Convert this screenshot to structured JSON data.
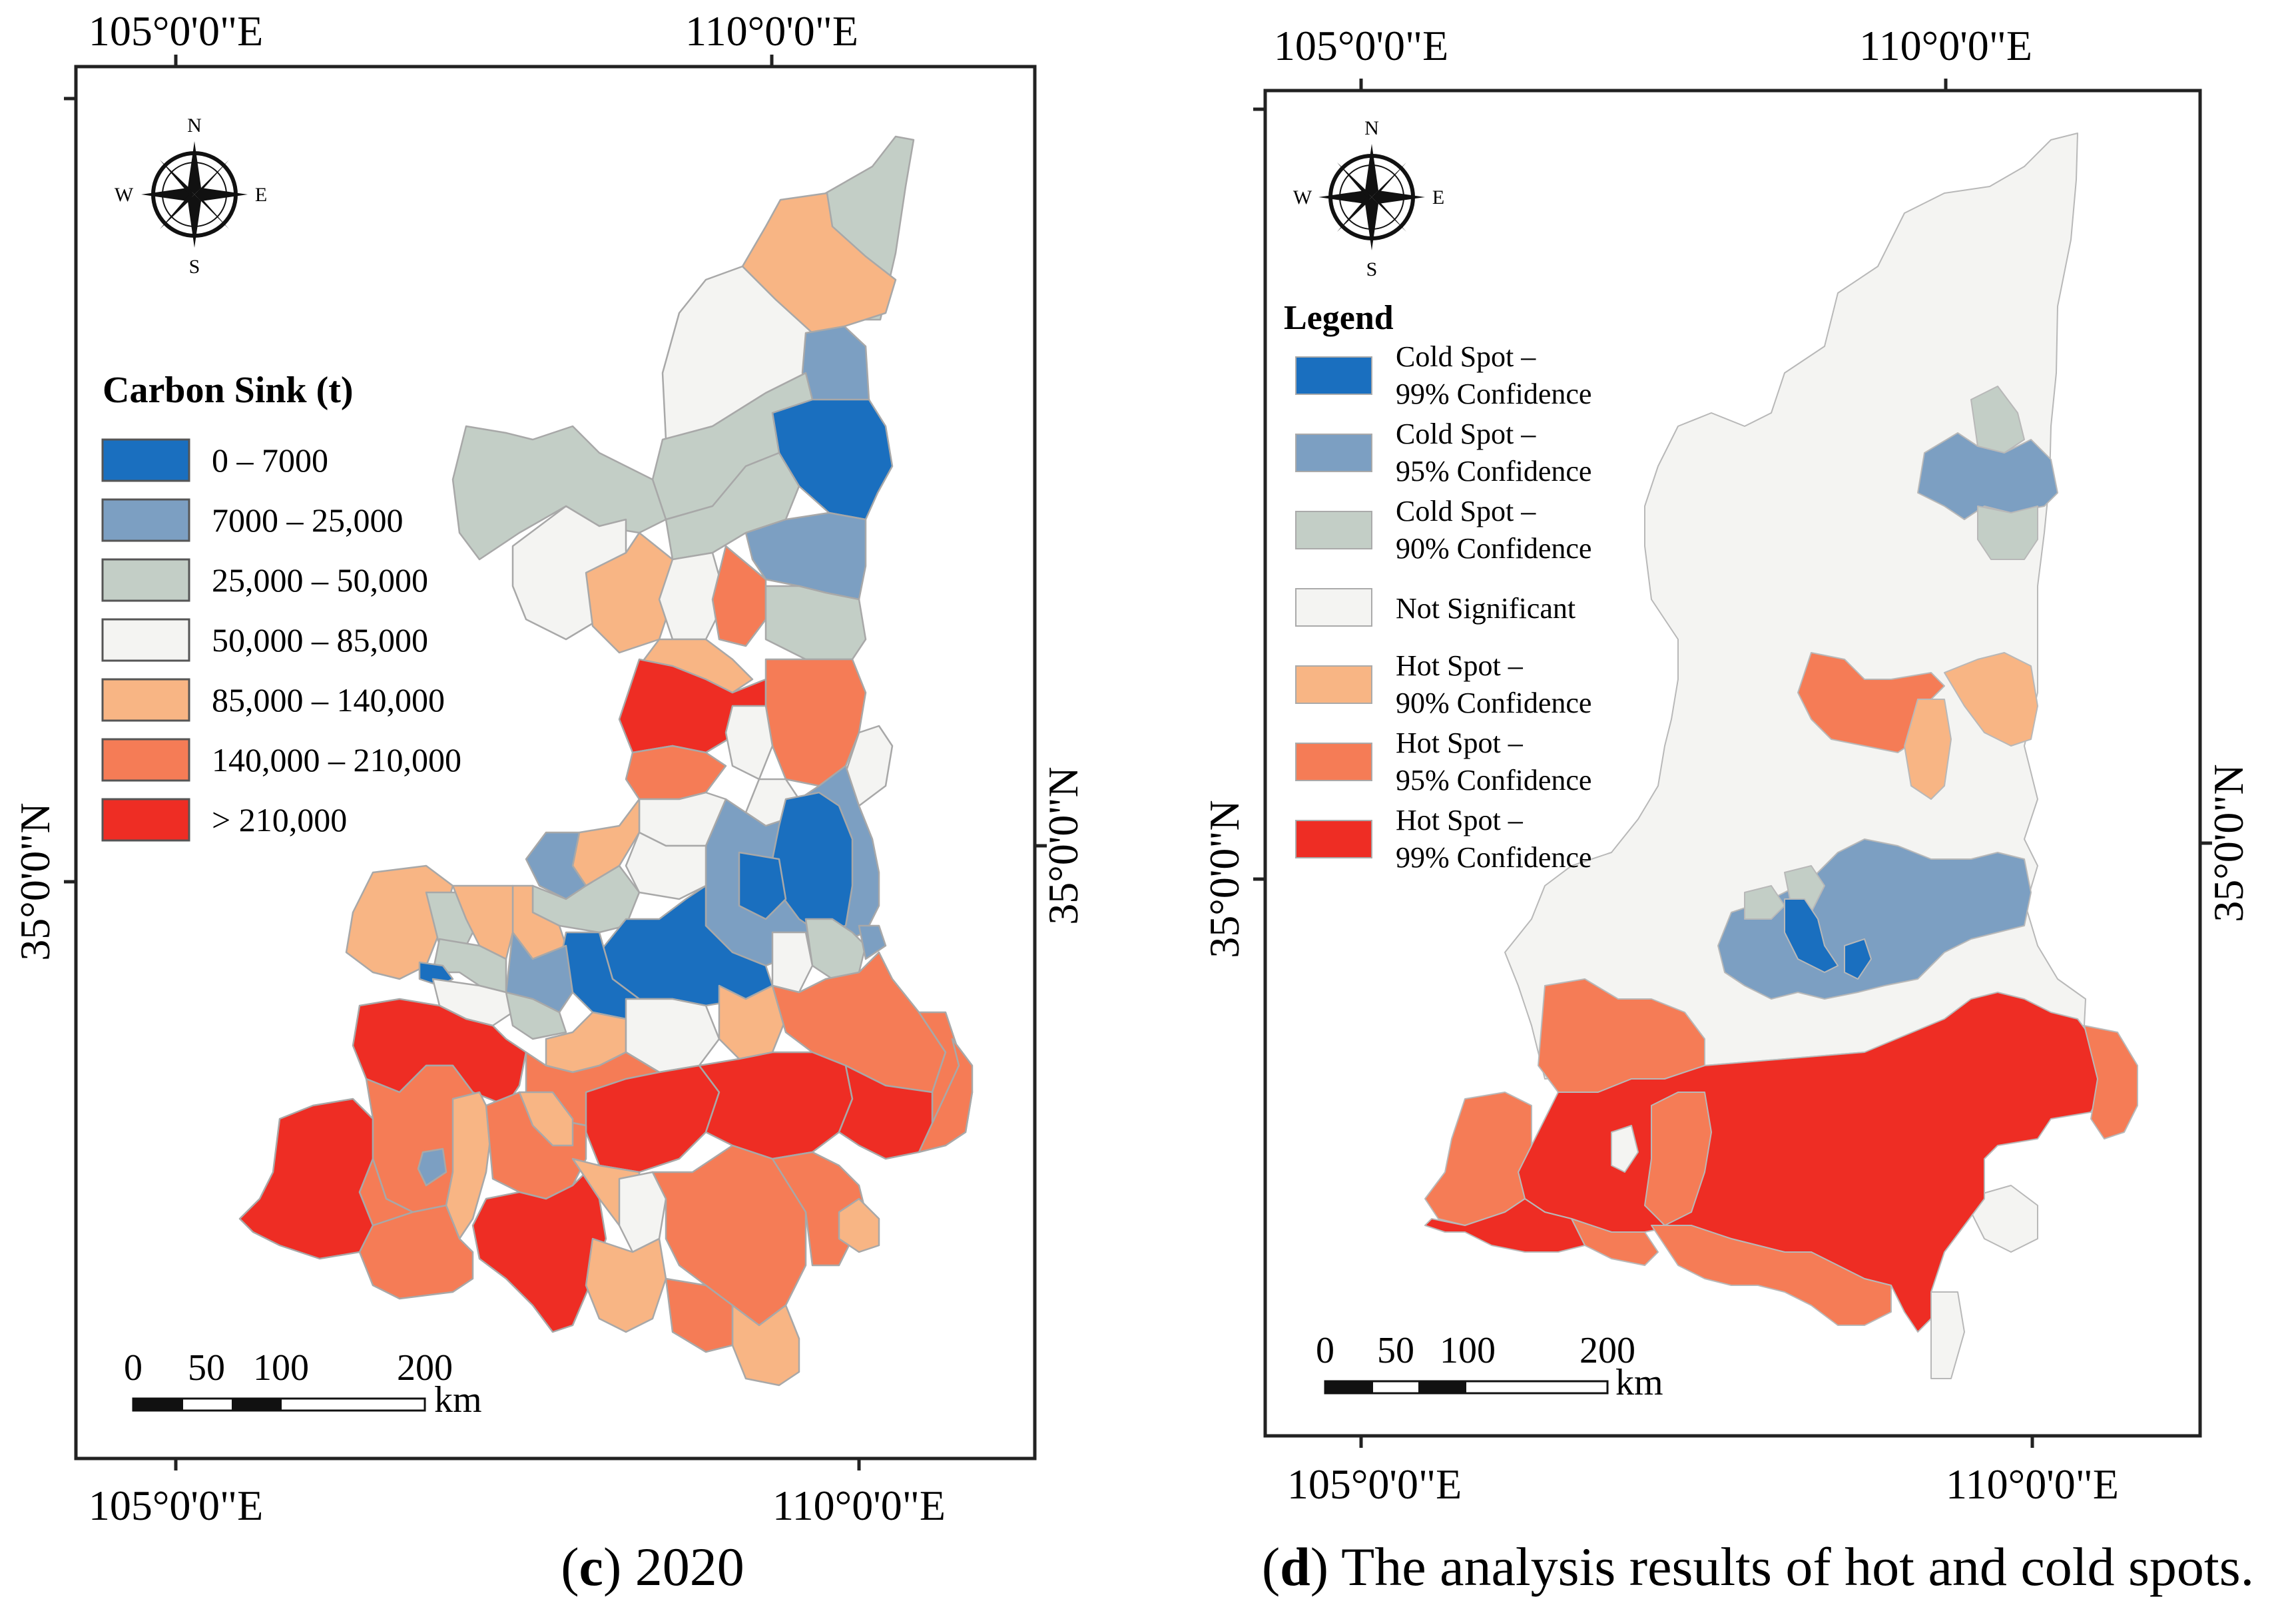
{
  "colors": {
    "cold99": "#1a6fbf",
    "cold95": "#7c9fc2",
    "cold90": "#c3cec6",
    "notsig": "#f4f4f2",
    "hot90": "#f8b584",
    "hot95": "#f57c56",
    "hot99": "#ee2d24",
    "border": "#a8a8a8",
    "frame": "#222222"
  },
  "icons": {
    "compass": "compass-rose-icon",
    "scalebar": "scale-bar-icon"
  },
  "map_c": {
    "caption_letter": "c",
    "caption_text": " 2020",
    "compass": {
      "n": "N",
      "s": "S",
      "e": "E",
      "w": "W"
    },
    "top_ticks": [
      "105°0'0\"E",
      "110°0'0\"E"
    ],
    "bottom_ticks": [
      "105°0'0\"E",
      "110°0'0\"E"
    ],
    "left_tick": "35°0'0\"N",
    "right_tick": "35°0'0\"N",
    "legend": {
      "title": "Carbon Sink (t)",
      "items": [
        {
          "label": "0 – 7000",
          "color": "#1a6fbf"
        },
        {
          "label": "7000 – 25,000",
          "color": "#7c9fc2"
        },
        {
          "label": "25,000 – 50,000",
          "color": "#c3cec6"
        },
        {
          "label": "50,000 – 85,000",
          "color": "#f4f4f2"
        },
        {
          "label": "85,000 – 140,000",
          "color": "#f8b584"
        },
        {
          "label": "140,000 – 210,000",
          "color": "#f57c56"
        },
        {
          "label": "> 210,000",
          "color": "#ee2d24"
        }
      ]
    },
    "scale": {
      "labels": [
        "0",
        "50",
        "100",
        "200"
      ],
      "unit": "km"
    }
  },
  "map_d": {
    "caption_letter": "d",
    "caption_text": " The analysis results of hot and cold spots.",
    "compass": {
      "n": "N",
      "s": "S",
      "e": "E",
      "w": "W"
    },
    "top_ticks": [
      "105°0'0\"E",
      "110°0'0\"E"
    ],
    "bottom_ticks": [
      "105°0'0\"E",
      "110°0'0\"E"
    ],
    "left_tick": "35°0'0\"N",
    "right_tick": "35°0'0\"N",
    "legend": {
      "title": "Legend",
      "items": [
        {
          "line1": "Cold Spot –",
          "line2": "99% Confidence",
          "color": "#1a6fbf"
        },
        {
          "line1": "Cold Spot –",
          "line2": "95% Confidence",
          "color": "#7c9fc2"
        },
        {
          "line1": "Cold Spot –",
          "line2": "90% Confidence",
          "color": "#c3cec6"
        },
        {
          "line1": "Not Significant",
          "line2": "",
          "color": "#f4f4f2"
        },
        {
          "line1": "Hot Spot –",
          "line2": "90% Confidence",
          "color": "#f8b584"
        },
        {
          "line1": "Hot Spot –",
          "line2": "95% Confidence",
          "color": "#f57c56"
        },
        {
          "line1": "Hot Spot –",
          "line2": "99% Confidence",
          "color": "#ee2d24"
        }
      ]
    },
    "scale": {
      "labels": [
        "0",
        "50",
        "100",
        "200"
      ],
      "unit": "km"
    }
  }
}
